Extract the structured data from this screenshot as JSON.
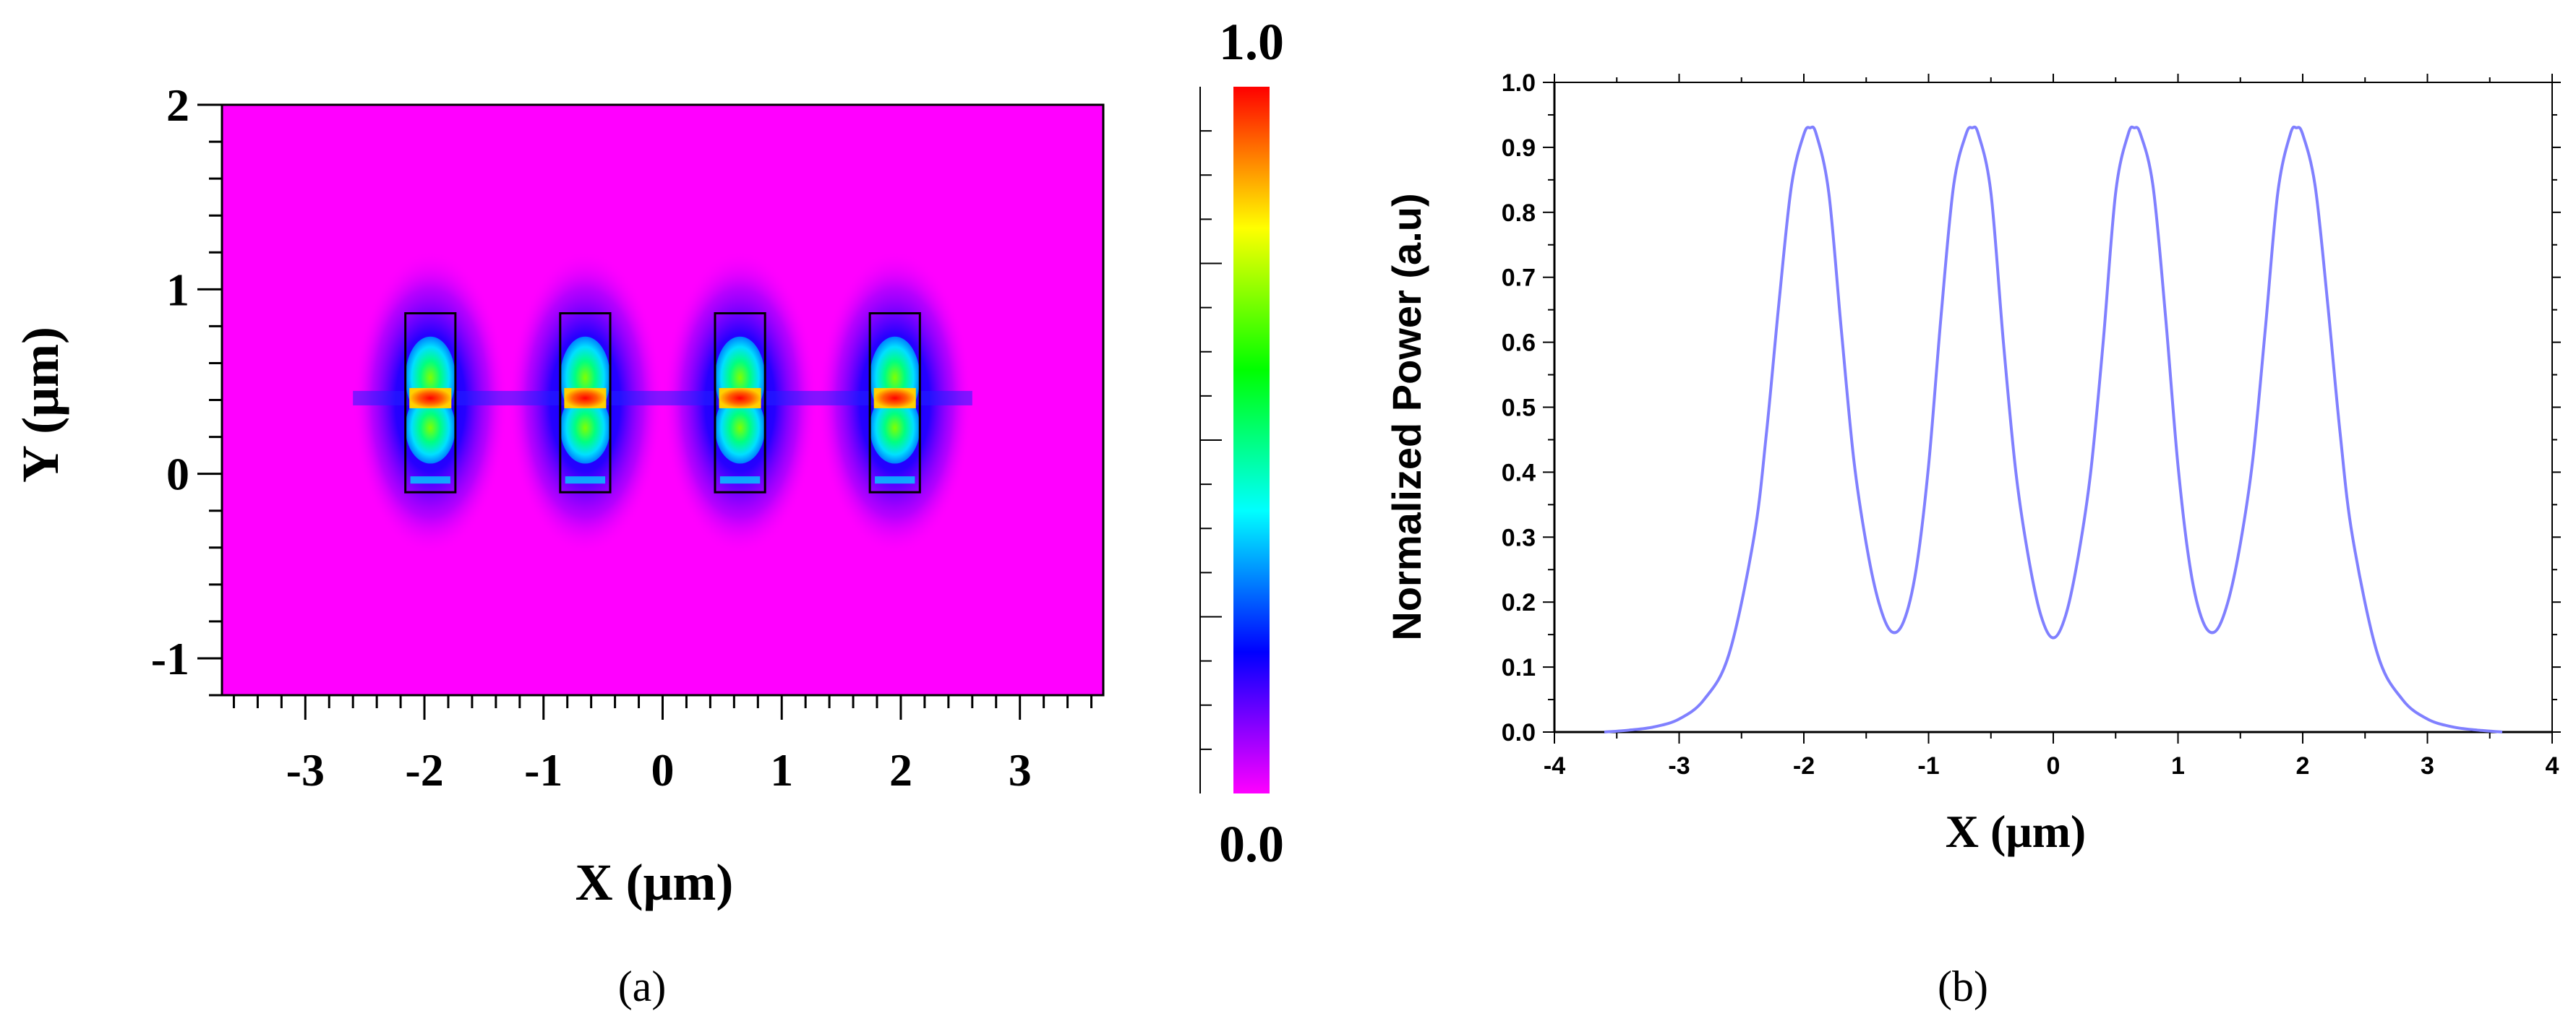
{
  "panel_a": {
    "caption": "(a)",
    "chart_data": {
      "type": "heatmap",
      "title": "",
      "xlabel": "X (μm)",
      "ylabel": "Y (μm)",
      "xlim": [
        -3.7,
        3.7
      ],
      "ylim": [
        -1.2,
        2.0
      ],
      "xticks": [
        -3,
        -2,
        -1,
        0,
        1,
        2,
        3
      ],
      "yticks": [
        -1,
        0,
        1,
        2
      ],
      "waveguides": [
        {
          "x_center": -1.95,
          "width": 0.42,
          "y_bottom": -0.1,
          "y_top": 0.87
        },
        {
          "x_center": -0.65,
          "width": 0.42,
          "y_bottom": -0.1,
          "y_top": 0.87
        },
        {
          "x_center": 0.65,
          "width": 0.42,
          "y_bottom": -0.1,
          "y_top": 0.87
        },
        {
          "x_center": 1.95,
          "width": 0.42,
          "y_bottom": -0.1,
          "y_top": 0.87
        }
      ],
      "hotspot_y": 0.41,
      "background_color": "#ff00ff",
      "colorbar": {
        "min_label": "0.0",
        "max_label": "1.0",
        "colors": [
          "#ff00ff",
          "#8000ff",
          "#0000ff",
          "#0080ff",
          "#00ffff",
          "#00ff80",
          "#00ff00",
          "#80ff00",
          "#ffff00",
          "#ff8000",
          "#ff0000"
        ]
      }
    }
  },
  "panel_b": {
    "caption": "(b)",
    "chart_data": {
      "type": "line",
      "title": "",
      "xlabel": "X (μm)",
      "ylabel": "Normalized  Power (a.u)",
      "xlim": [
        -4,
        4
      ],
      "ylim": [
        0.0,
        1.0
      ],
      "xticks": [
        "-4",
        "-3",
        "-2",
        "-1",
        "0",
        "1",
        "2",
        "3",
        "4"
      ],
      "yticks": [
        "0.0",
        "0.1",
        "0.2",
        "0.3",
        "0.4",
        "0.5",
        "0.6",
        "0.7",
        "0.8",
        "0.9",
        "1.0"
      ],
      "line_color": "#8080ff",
      "series": [
        {
          "x": [
            -3.6,
            -3.4,
            -3.2,
            -3.0,
            -2.8,
            -2.6,
            -2.4,
            -2.3,
            -2.2,
            -2.1,
            -2.0,
            -1.95,
            -1.9,
            -1.8,
            -1.7,
            -1.6,
            -1.5,
            -1.4,
            -1.3,
            -1.2,
            -1.1,
            -1.0,
            -0.9,
            -0.8,
            -0.7,
            -0.65,
            -0.6,
            -0.5,
            -0.4,
            -0.3,
            -0.2,
            -0.1,
            0.0,
            0.1,
            0.2,
            0.3,
            0.4,
            0.5,
            0.6,
            0.65,
            0.7,
            0.8,
            0.9,
            1.0,
            1.1,
            1.2,
            1.3,
            1.4,
            1.5,
            1.6,
            1.7,
            1.8,
            1.9,
            1.95,
            2.0,
            2.1,
            2.2,
            2.3,
            2.4,
            2.6,
            2.8,
            3.0,
            3.2,
            3.4,
            3.6
          ],
          "y": [
            0.0,
            0.003,
            0.008,
            0.02,
            0.05,
            0.12,
            0.3,
            0.46,
            0.66,
            0.84,
            0.92,
            0.93,
            0.92,
            0.83,
            0.62,
            0.42,
            0.29,
            0.2,
            0.155,
            0.17,
            0.25,
            0.41,
            0.64,
            0.84,
            0.92,
            0.93,
            0.92,
            0.83,
            0.6,
            0.4,
            0.27,
            0.18,
            0.145,
            0.18,
            0.27,
            0.4,
            0.6,
            0.83,
            0.92,
            0.93,
            0.92,
            0.84,
            0.64,
            0.41,
            0.25,
            0.17,
            0.155,
            0.2,
            0.29,
            0.42,
            0.62,
            0.83,
            0.92,
            0.93,
            0.92,
            0.84,
            0.66,
            0.46,
            0.3,
            0.12,
            0.05,
            0.02,
            0.008,
            0.003,
            0.0
          ]
        }
      ]
    }
  }
}
